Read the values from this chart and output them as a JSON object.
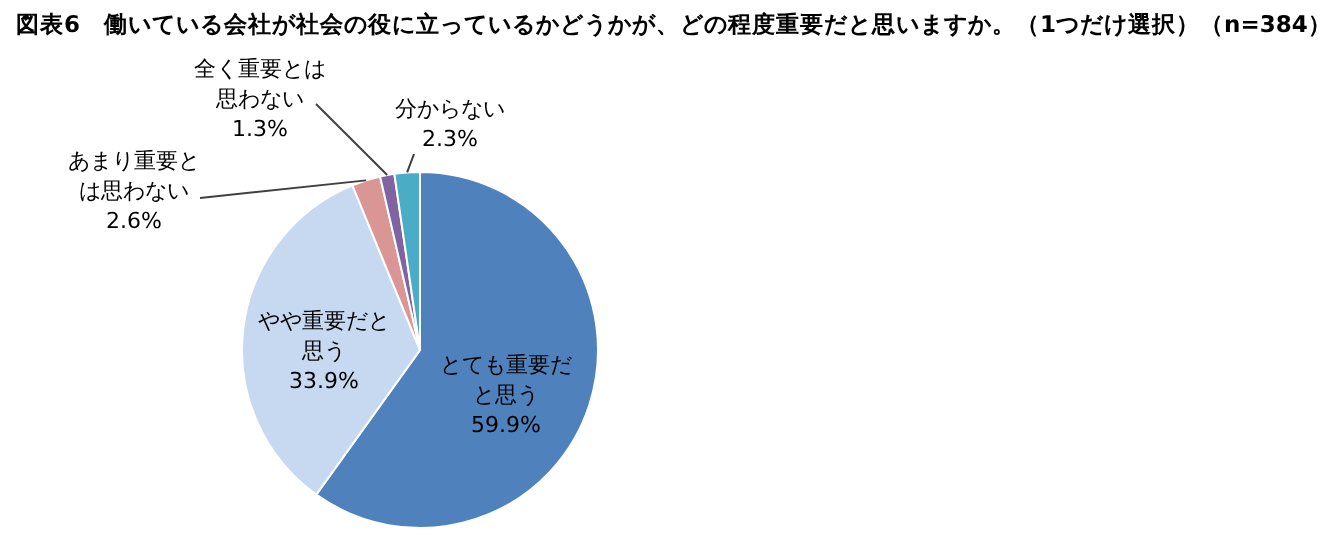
{
  "chart_data": {
    "type": "pie",
    "title": "図表6　働いている会社が社会の役に立っているかどうかが、どの程度重要だと思いますか。（1つだけ選択）（n=384）",
    "categories": [
      "とても重要だと思う",
      "やや重要だと思う",
      "あまり重要とは思わない",
      "全く重要とは思わない",
      "分からない"
    ],
    "values": [
      59.9,
      33.9,
      2.6,
      1.3,
      2.3
    ],
    "colors": [
      "#4f81bd",
      "#c6d9f1",
      "#d99694",
      "#8064a2",
      "#4bacc6"
    ],
    "value_labels": [
      "59.9%",
      "33.9%",
      "2.6%",
      "1.3%",
      "2.3%"
    ],
    "legend": false
  }
}
